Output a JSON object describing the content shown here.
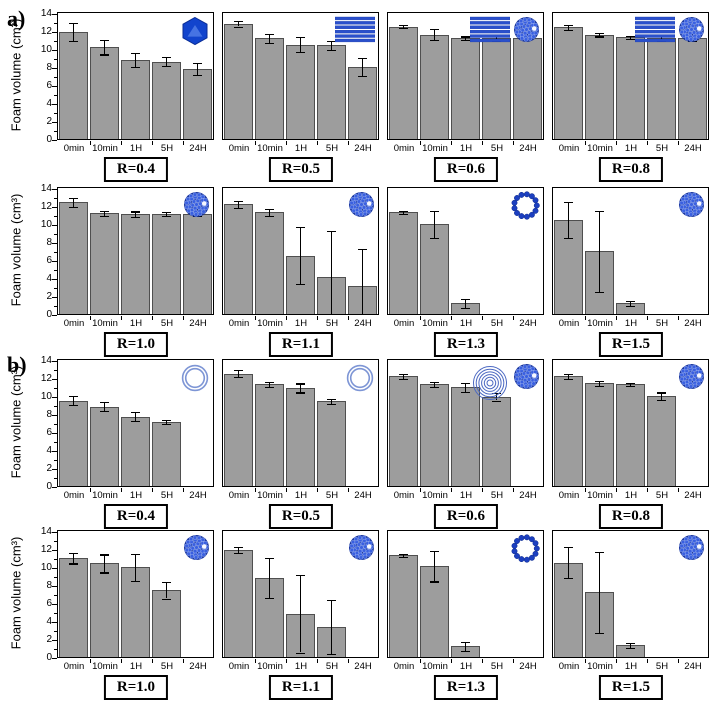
{
  "labels": {
    "panel_a": "a)",
    "panel_b": "b)"
  },
  "colors": {
    "bar_fill": "#9d9d9d",
    "bar_border": "#4f4f4f",
    "frame": "#000000",
    "icon_blue_dark": "#16339e",
    "icon_blue": "#1c3fc0",
    "icon_blue_bead": "#3a60e0",
    "icon_ring_light": "#7d95d5",
    "icon_multiring": "#4c69c2",
    "icon_lamella": "#2a50cc",
    "icon_hexagon": "#1244cd"
  },
  "chart_data": {
    "type": "bar",
    "categories": [
      "0min",
      "10min",
      "1H",
      "5H",
      "24H"
    ],
    "ylabel": "Foam volume (cm³)",
    "ylim": [
      0,
      14
    ],
    "y_ticks": [
      0,
      2,
      4,
      6,
      8,
      10,
      12,
      14
    ],
    "error_bars": true,
    "grid": false,
    "legend": "none",
    "charts": [
      {
        "panel": "a",
        "label": "R=0.4",
        "icons": [
          "hexagonal-phase"
        ],
        "values": [
          11.9,
          10.2,
          8.8,
          8.6,
          7.8
        ],
        "errors": [
          1.0,
          0.8,
          0.8,
          0.5,
          0.7
        ]
      },
      {
        "panel": "a",
        "label": "R=0.5",
        "icons": [
          "lamellar-phase"
        ],
        "values": [
          12.8,
          11.2,
          10.5,
          10.4,
          8.0
        ],
        "errors": [
          0.3,
          0.5,
          0.8,
          0.5,
          1.0
        ]
      },
      {
        "panel": "a",
        "label": "R=0.6",
        "icons": [
          "lamellar-phase",
          "micelle-sphere"
        ],
        "values": [
          12.5,
          11.6,
          11.2,
          11.2,
          11.2
        ],
        "errors": [
          0.2,
          0.6,
          0.2,
          0.3,
          0.2
        ]
      },
      {
        "panel": "a",
        "label": "R=0.8",
        "icons": [
          "lamellar-phase",
          "micelle-sphere"
        ],
        "values": [
          12.4,
          11.6,
          11.3,
          11.2,
          11.2
        ],
        "errors": [
          0.3,
          0.2,
          0.2,
          0.3,
          0.3
        ]
      },
      {
        "panel": "a",
        "label": "R=1.0",
        "icons": [
          "micelle-sphere"
        ],
        "values": [
          12.4,
          11.2,
          11.1,
          11.1,
          11.1
        ],
        "errors": [
          0.5,
          0.3,
          0.3,
          0.2,
          0.2
        ]
      },
      {
        "panel": "a",
        "label": "R=1.1",
        "icons": [
          "micelle-sphere"
        ],
        "values": [
          12.2,
          11.3,
          6.5,
          4.1,
          3.1
        ],
        "errors": [
          0.4,
          0.4,
          3.2,
          5.1,
          4.1
        ]
      },
      {
        "panel": "a",
        "label": "R=1.3",
        "icons": [
          "vesicle-bead-ring"
        ],
        "values": [
          11.3,
          10.0,
          1.2,
          0,
          0
        ],
        "errors": [
          0.2,
          1.5,
          0.5,
          0,
          0
        ]
      },
      {
        "panel": "a",
        "label": "R=1.5",
        "icons": [
          "micelle-sphere"
        ],
        "values": [
          10.5,
          7.0,
          1.2,
          0,
          0
        ],
        "errors": [
          2.0,
          4.5,
          0.3,
          0,
          0
        ]
      },
      {
        "panel": "b",
        "label": "R=0.4",
        "icons": [
          "bilayer-ring"
        ],
        "values": [
          9.5,
          8.8,
          7.7,
          7.1,
          0
        ],
        "errors": [
          0.5,
          0.5,
          0.5,
          0.2,
          0
        ]
      },
      {
        "panel": "b",
        "label": "R=0.5",
        "icons": [
          "bilayer-ring"
        ],
        "values": [
          12.5,
          11.3,
          10.9,
          9.4,
          0
        ],
        "errors": [
          0.4,
          0.3,
          0.5,
          0.3,
          0
        ]
      },
      {
        "panel": "b",
        "label": "R=0.6",
        "icons": [
          "multilamellar-rings",
          "micelle-sphere"
        ],
        "values": [
          12.2,
          11.3,
          11.0,
          9.9,
          0
        ],
        "errors": [
          0.3,
          0.3,
          0.5,
          0.4,
          0
        ]
      },
      {
        "panel": "b",
        "label": "R=0.8",
        "icons": [
          "micelle-sphere"
        ],
        "values": [
          12.2,
          11.4,
          11.3,
          10.0,
          0
        ],
        "errors": [
          0.3,
          0.3,
          0.2,
          0.4,
          0
        ]
      },
      {
        "panel": "b",
        "label": "R=1.0",
        "icons": [
          "micelle-sphere"
        ],
        "values": [
          11.0,
          10.4,
          10.0,
          7.4,
          0
        ],
        "errors": [
          0.6,
          1.0,
          1.5,
          0.9,
          0
        ]
      },
      {
        "panel": "b",
        "label": "R=1.1",
        "icons": [
          "micelle-sphere"
        ],
        "values": [
          11.9,
          8.8,
          4.8,
          3.3,
          0
        ],
        "errors": [
          0.3,
          2.2,
          4.3,
          3.0,
          0
        ]
      },
      {
        "panel": "b",
        "label": "R=1.3",
        "icons": [
          "vesicle-bead-ring"
        ],
        "values": [
          11.3,
          10.1,
          1.2,
          0,
          0
        ],
        "errors": [
          0.2,
          1.7,
          0.5,
          0,
          0
        ]
      },
      {
        "panel": "b",
        "label": "R=1.5",
        "icons": [
          "micelle-sphere"
        ],
        "values": [
          10.5,
          7.2,
          1.3,
          0,
          0
        ],
        "errors": [
          1.7,
          4.5,
          0.3,
          0,
          0
        ]
      }
    ]
  }
}
